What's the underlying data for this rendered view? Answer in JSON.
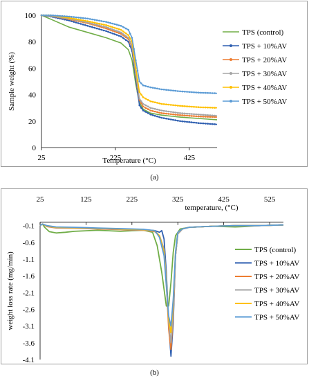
{
  "captions": {
    "a": "(a)",
    "b": "(b)"
  },
  "chart_data": [
    {
      "type": "line",
      "xlabel": "Temperature (°C)",
      "ylabel": "Sample weight (%)",
      "xlim": [
        25,
        500
      ],
      "ylim": [
        0,
        100
      ],
      "x_ticks": [
        25,
        225,
        425
      ],
      "y_ticks": [
        0,
        20,
        40,
        60,
        80,
        100
      ],
      "grid": false,
      "legend": "right",
      "series": [
        {
          "name": "TPS (control)",
          "color": "#70ad47",
          "marker": "none",
          "x": [
            25,
            50,
            100,
            150,
            200,
            240,
            260,
            270,
            280,
            290,
            300,
            320,
            350,
            400,
            450,
            500
          ],
          "y": [
            100,
            97,
            91,
            87,
            83,
            79,
            74,
            66,
            48,
            34,
            29,
            26,
            24.5,
            23,
            22,
            21
          ]
        },
        {
          "name": "TPS + 10%AV",
          "color": "#2f5fb0",
          "marker": "dot",
          "x": [
            25,
            50,
            100,
            150,
            200,
            240,
            260,
            270,
            280,
            290,
            300,
            320,
            350,
            400,
            450,
            500
          ],
          "y": [
            100,
            99,
            96,
            92,
            88,
            84,
            80,
            73,
            52,
            32,
            28,
            25,
            22.5,
            20,
            18.5,
            17.5
          ]
        },
        {
          "name": "TPS + 20%AV",
          "color": "#ed7d31",
          "marker": "dot",
          "x": [
            25,
            50,
            100,
            150,
            200,
            240,
            260,
            270,
            280,
            290,
            300,
            320,
            350,
            400,
            450,
            500
          ],
          "y": [
            100,
            99.5,
            97,
            94,
            90,
            86,
            82,
            76,
            55,
            36,
            31,
            28,
            26,
            24.5,
            23.5,
            23
          ]
        },
        {
          "name": "TPS + 30%AV",
          "color": "#a5a5a5",
          "marker": "dot",
          "x": [
            25,
            50,
            100,
            150,
            200,
            240,
            260,
            270,
            280,
            290,
            300,
            320,
            350,
            400,
            450,
            500
          ],
          "y": [
            100,
            99.5,
            97.5,
            94.5,
            91,
            87,
            83,
            77,
            56,
            37,
            33,
            30,
            28,
            26,
            25,
            24
          ]
        },
        {
          "name": "TPS + 40%AV",
          "color": "#ffc000",
          "marker": "dot",
          "x": [
            25,
            50,
            100,
            150,
            200,
            240,
            260,
            270,
            280,
            290,
            300,
            320,
            350,
            400,
            450,
            500
          ],
          "y": [
            100,
            100,
            98,
            95.5,
            92.5,
            89,
            85,
            80,
            60,
            42,
            38,
            35,
            33,
            31.5,
            30.5,
            30
          ]
        },
        {
          "name": "TPS + 50%AV",
          "color": "#5b9bd5",
          "marker": "dot",
          "x": [
            25,
            50,
            100,
            150,
            200,
            240,
            260,
            270,
            280,
            290,
            300,
            320,
            350,
            400,
            450,
            500
          ],
          "y": [
            100,
            100,
            99,
            97.5,
            95,
            92,
            89,
            83,
            66,
            50,
            47,
            45.5,
            44,
            42.5,
            41.5,
            41
          ]
        }
      ]
    },
    {
      "type": "line",
      "xlabel": "temperature, (°C)",
      "ylabel": "weight loss rate (mg/min)",
      "xlim": [
        25,
        555
      ],
      "ylim": [
        -4.1,
        0.1
      ],
      "x_ticks": [
        25,
        125,
        225,
        325,
        425,
        525
      ],
      "y_ticks": [
        -0.1,
        -0.6,
        -1.1,
        -1.6,
        -2.1,
        -2.6,
        -3.1,
        -3.6,
        -4.1
      ],
      "grid": false,
      "legend": "right",
      "series": [
        {
          "name": "TPS (control)",
          "color": "#70ad47",
          "x": [
            25,
            30,
            35,
            45,
            60,
            80,
            100,
            150,
            200,
            250,
            270,
            280,
            290,
            295,
            300,
            305,
            310,
            315,
            320,
            330,
            350,
            400,
            450,
            470,
            500,
            555
          ],
          "y": [
            -0.1,
            -0.05,
            -0.15,
            -0.28,
            -0.32,
            -0.3,
            -0.27,
            -0.24,
            -0.27,
            -0.24,
            -0.3,
            -0.7,
            -1.5,
            -2.0,
            -2.5,
            -2.5,
            -1.8,
            -0.9,
            -0.4,
            -0.2,
            -0.15,
            -0.12,
            -0.14,
            -0.13,
            -0.1,
            -0.08
          ]
        },
        {
          "name": "TPS + 10%AV",
          "color": "#2f5fb0",
          "x": [
            25,
            30,
            40,
            60,
            100,
            150,
            200,
            250,
            275,
            285,
            290,
            295,
            300,
            305,
            310,
            315,
            320,
            325,
            335,
            350,
            400,
            450,
            500,
            555
          ],
          "y": [
            -0.1,
            -0.05,
            -0.12,
            -0.15,
            -0.16,
            -0.18,
            -0.2,
            -0.22,
            -0.25,
            -0.3,
            -0.25,
            -0.5,
            -1.5,
            -3.0,
            -4.0,
            -3.0,
            -1.0,
            -0.35,
            -0.2,
            -0.15,
            -0.12,
            -0.1,
            -0.1,
            -0.08
          ]
        },
        {
          "name": "TPS + 20%AV",
          "color": "#ed7d31",
          "x": [
            25,
            30,
            40,
            60,
            100,
            150,
            200,
            250,
            275,
            285,
            295,
            300,
            305,
            310,
            315,
            320,
            325,
            335,
            350,
            400,
            450,
            500,
            555
          ],
          "y": [
            -0.1,
            -0.05,
            -0.13,
            -0.17,
            -0.18,
            -0.2,
            -0.22,
            -0.24,
            -0.28,
            -0.4,
            -0.8,
            -1.8,
            -3.2,
            -3.8,
            -2.8,
            -1.0,
            -0.35,
            -0.2,
            -0.15,
            -0.12,
            -0.1,
            -0.1,
            -0.08
          ]
        },
        {
          "name": "TPS + 30%AV",
          "color": "#a5a5a5",
          "x": [
            25,
            30,
            40,
            60,
            100,
            150,
            200,
            250,
            275,
            285,
            295,
            300,
            305,
            310,
            315,
            320,
            325,
            335,
            350,
            400,
            450,
            500,
            555
          ],
          "y": [
            -0.1,
            -0.05,
            -0.12,
            -0.16,
            -0.17,
            -0.19,
            -0.21,
            -0.23,
            -0.27,
            -0.4,
            -0.8,
            -1.7,
            -3.0,
            -3.6,
            -2.7,
            -1.0,
            -0.35,
            -0.2,
            -0.15,
            -0.12,
            -0.1,
            -0.1,
            -0.08
          ]
        },
        {
          "name": "TPS + 40%AV",
          "color": "#ffc000",
          "x": [
            25,
            30,
            40,
            60,
            100,
            150,
            200,
            250,
            275,
            285,
            295,
            300,
            305,
            310,
            315,
            320,
            325,
            335,
            350,
            400,
            450,
            500,
            555
          ],
          "y": [
            -0.1,
            -0.05,
            -0.11,
            -0.15,
            -0.16,
            -0.18,
            -0.2,
            -0.22,
            -0.26,
            -0.4,
            -0.9,
            -1.8,
            -2.9,
            -3.3,
            -2.4,
            -0.9,
            -0.3,
            -0.2,
            -0.15,
            -0.12,
            -0.1,
            -0.1,
            -0.08
          ]
        },
        {
          "name": "TPS + 50%AV",
          "color": "#5b9bd5",
          "x": [
            25,
            30,
            40,
            60,
            100,
            150,
            200,
            250,
            275,
            285,
            295,
            300,
            305,
            310,
            315,
            320,
            325,
            335,
            350,
            400,
            450,
            500,
            555
          ],
          "y": [
            -0.1,
            -0.05,
            -0.1,
            -0.14,
            -0.15,
            -0.17,
            -0.19,
            -0.21,
            -0.25,
            -0.45,
            -1.0,
            -1.9,
            -2.8,
            -3.1,
            -2.3,
            -0.9,
            -0.3,
            -0.2,
            -0.15,
            -0.12,
            -0.1,
            -0.1,
            -0.08
          ]
        }
      ]
    }
  ]
}
